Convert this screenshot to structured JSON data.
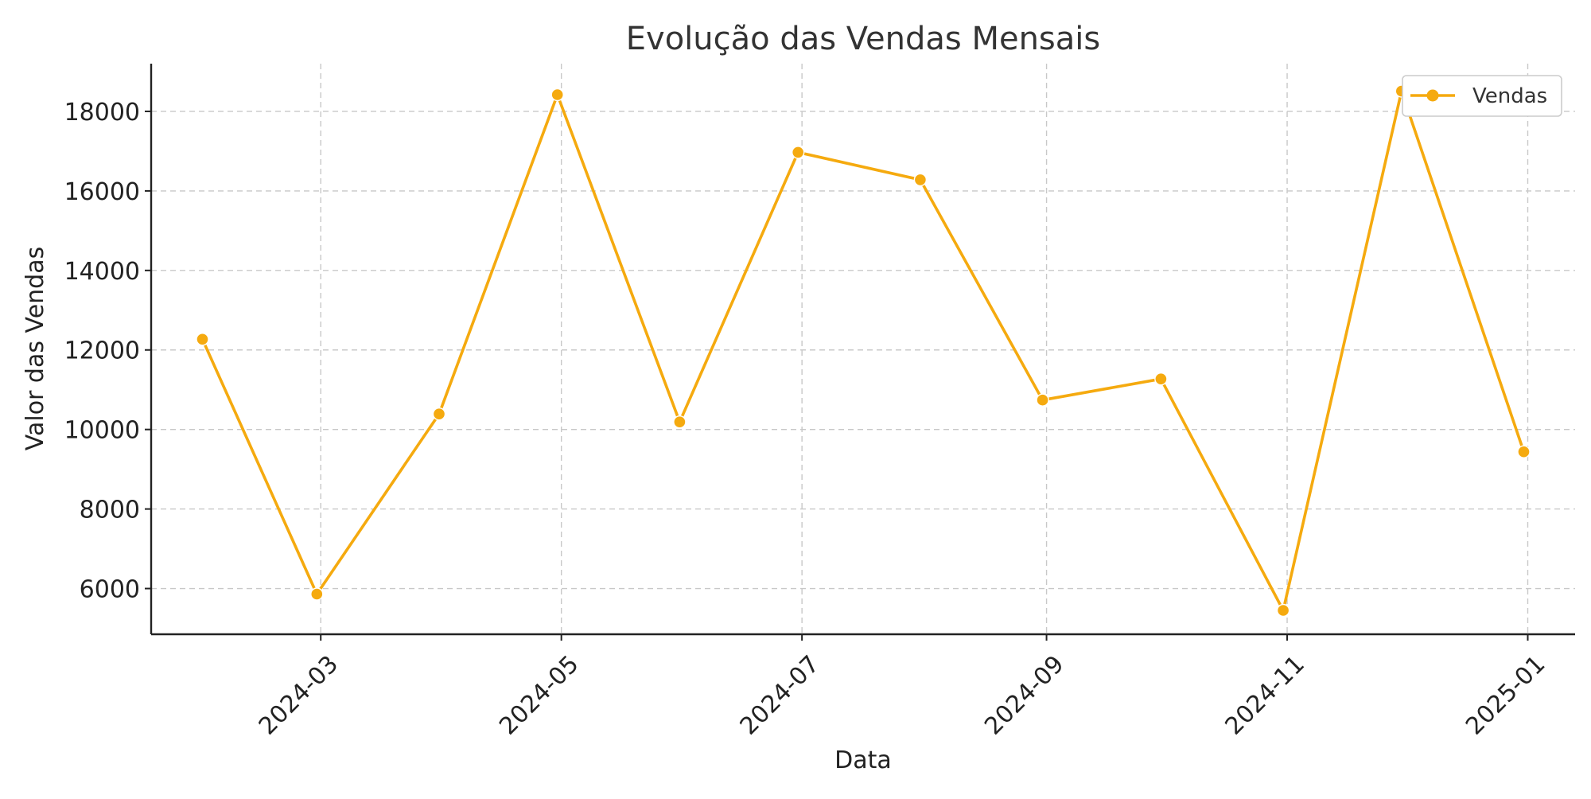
{
  "chart_data": {
    "type": "line",
    "title": "Evolução das Vendas Mensais",
    "xlabel": "Data",
    "ylabel": "Valor das Vendas",
    "x": [
      "2024-01-31",
      "2024-02-29",
      "2024-03-31",
      "2024-04-30",
      "2024-05-31",
      "2024-06-30",
      "2024-07-31",
      "2024-08-31",
      "2024-09-30",
      "2024-10-31",
      "2024-11-30",
      "2024-12-31"
    ],
    "series": [
      {
        "name": "Vendas",
        "color": "#F5AA0F",
        "marker": "circle",
        "values": [
          12270,
          5860,
          10390,
          18420,
          10190,
          16970,
          16280,
          10740,
          11270,
          5450,
          18510,
          9440
        ]
      }
    ],
    "xlim": [
      "2024-01-18",
      "2025-01-13"
    ],
    "ylim": [
      4850,
      19200
    ],
    "x_ticks": [
      "2024-03",
      "2024-05",
      "2024-07",
      "2024-09",
      "2024-11",
      "2025-01"
    ],
    "y_ticks": [
      6000,
      8000,
      10000,
      12000,
      14000,
      16000,
      18000
    ],
    "grid": true,
    "legend": "top-right"
  }
}
